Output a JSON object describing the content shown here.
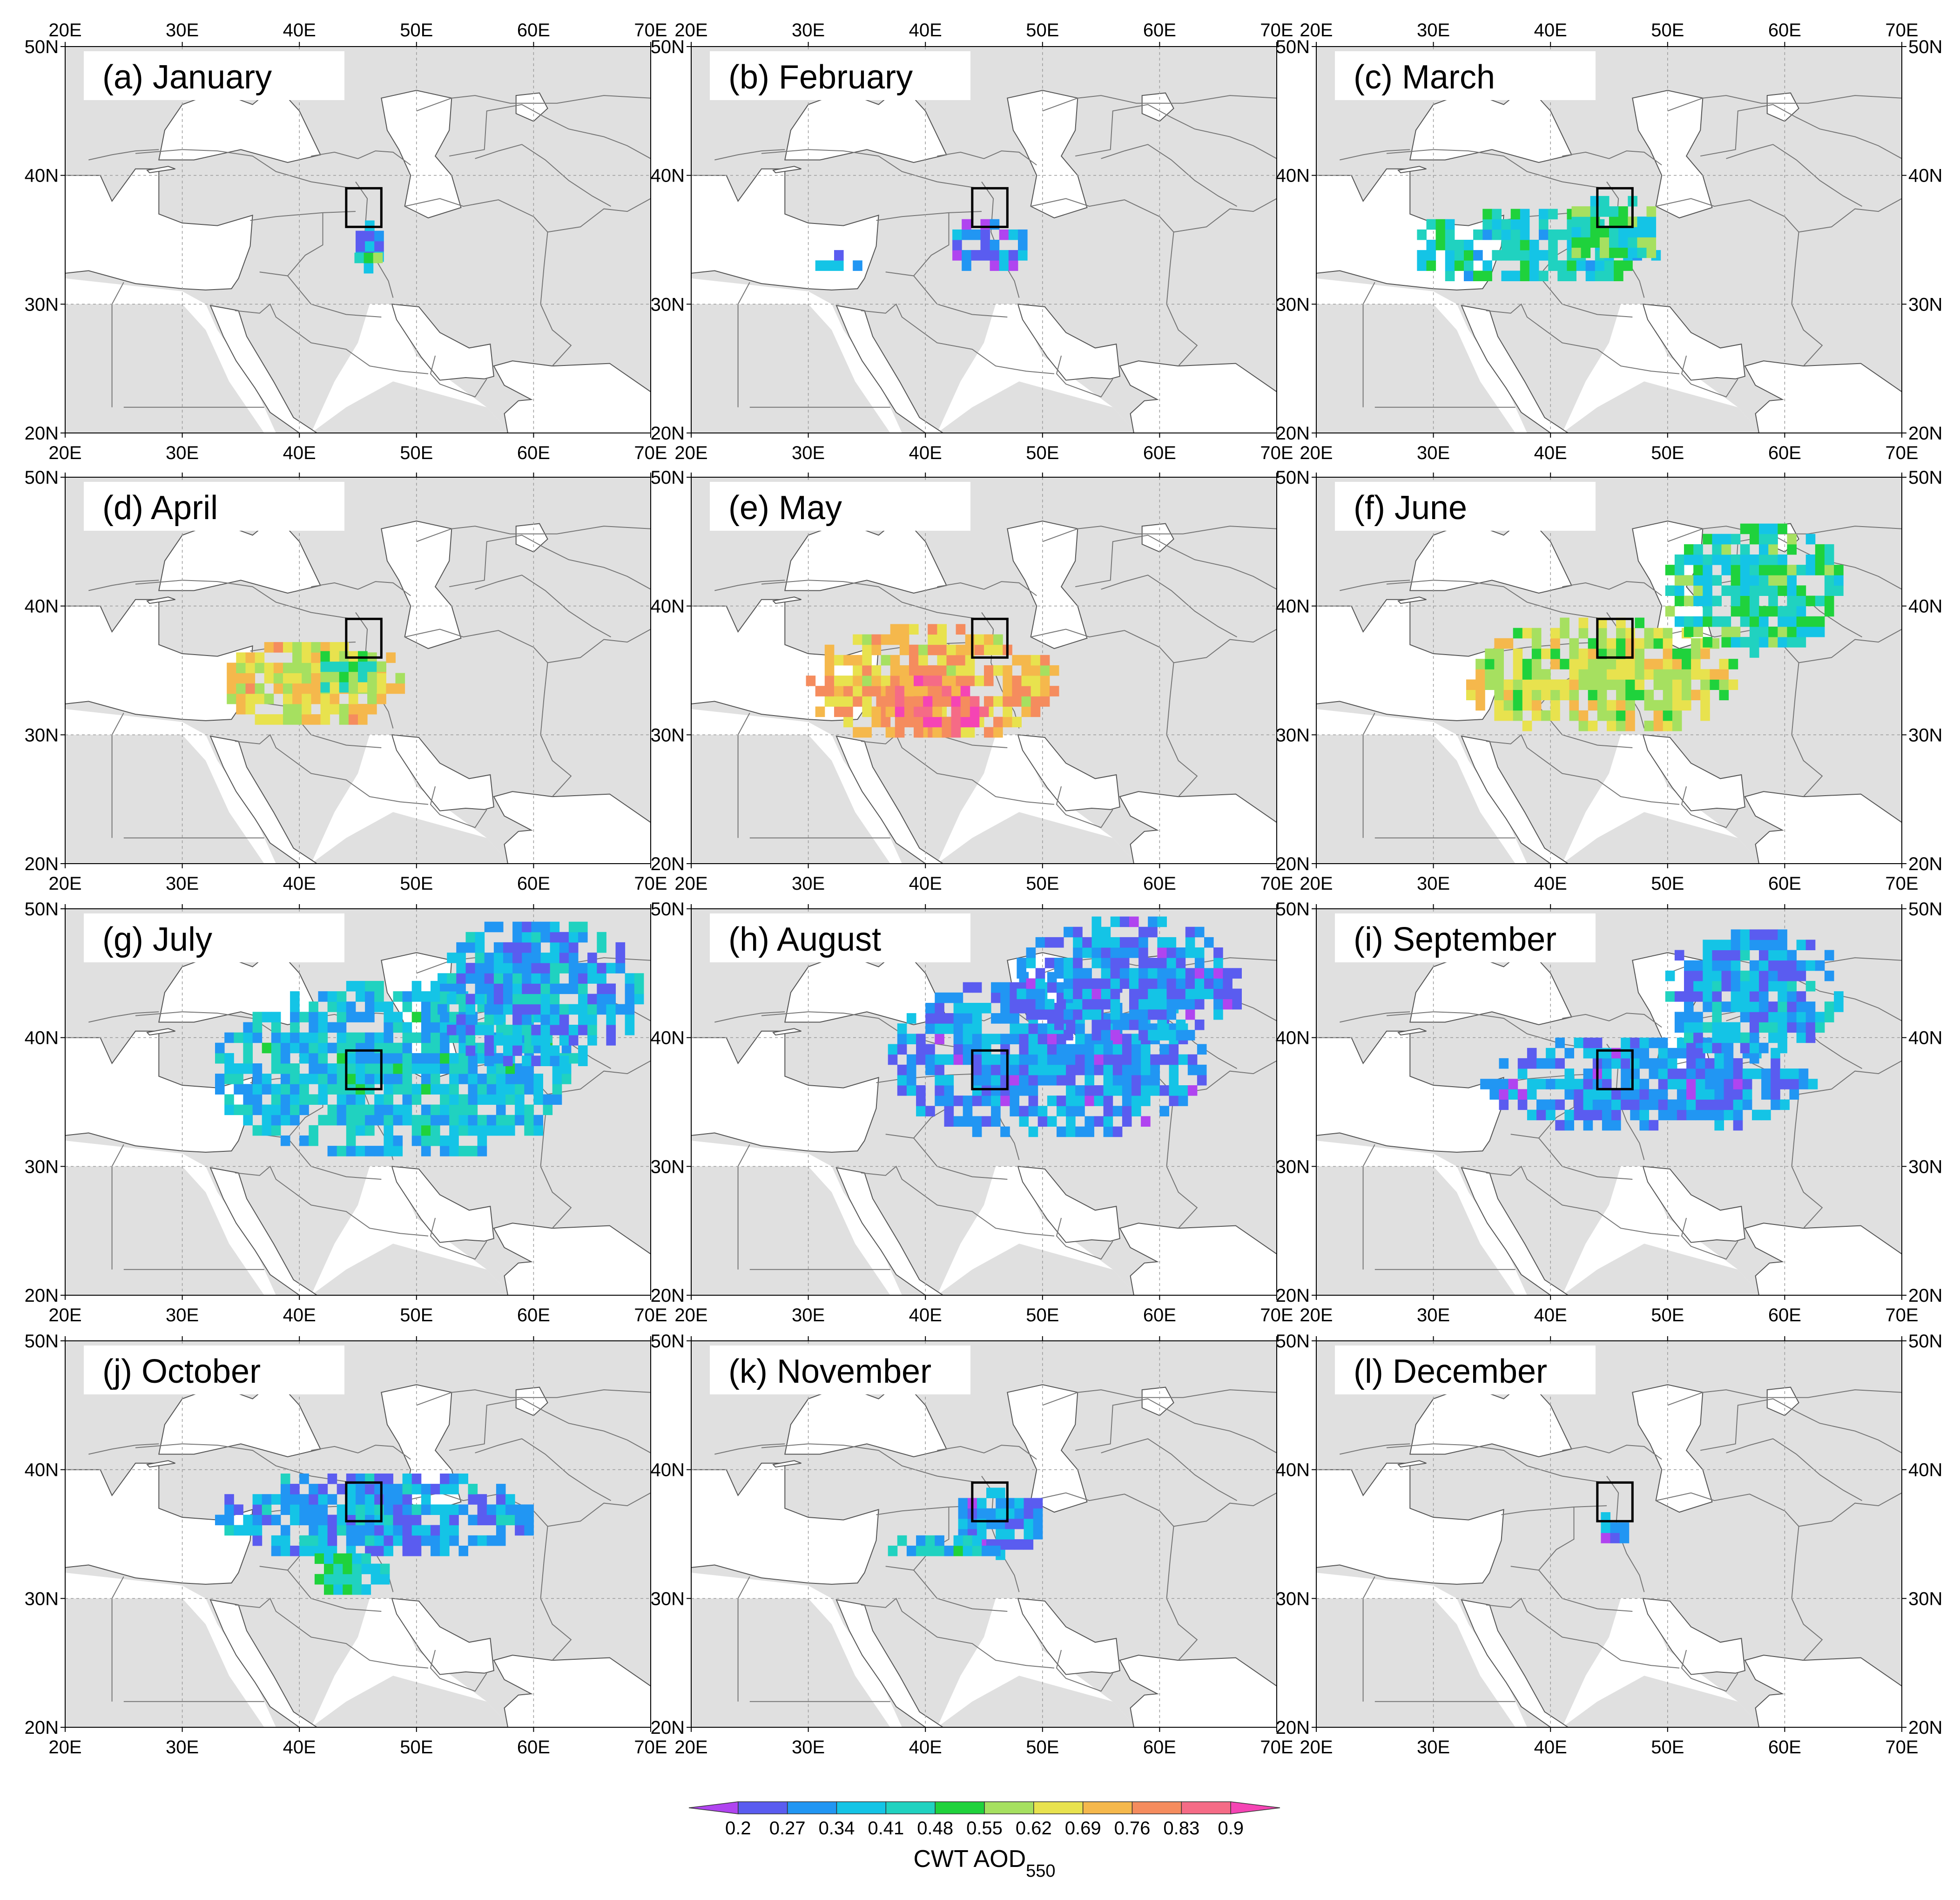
{
  "figure": {
    "panels": [
      {
        "title": "(a) January"
      },
      {
        "title": "(b) February"
      },
      {
        "title": "(c) March"
      },
      {
        "title": "(d) April"
      },
      {
        "title": "(e) May"
      },
      {
        "title": "(f) June"
      },
      {
        "title": "(g) July"
      },
      {
        "title": "(h) August"
      },
      {
        "title": "(i) September"
      },
      {
        "title": "(j) October"
      },
      {
        "title": "(k) November"
      },
      {
        "title": "(l) December"
      }
    ],
    "lon_ticks": [
      "20E",
      "30E",
      "40E",
      "50E",
      "60E",
      "70E"
    ],
    "lat_ticks": [
      "50N",
      "40N",
      "30N",
      "20N"
    ],
    "colorbar": {
      "labels": [
        "0.2",
        "0.27",
        "0.34",
        "0.41",
        "0.48",
        "0.55",
        "0.62",
        "0.69",
        "0.76",
        "0.83",
        "0.9"
      ],
      "colors": [
        "#b044f0",
        "#5a5cf0",
        "#2196f3",
        "#14c4e6",
        "#20d2c0",
        "#1fd23c",
        "#a6e060",
        "#e8e24e",
        "#f5b84c",
        "#f58c5e",
        "#f56b86",
        "#f544b4"
      ],
      "title_main": "CWT AOD",
      "title_sub": "550"
    },
    "land_color": "#e0e0e0",
    "water_color": "#ffffff",
    "study_box_color": "#000000"
  },
  "chart_data": {
    "type": "heatmap",
    "variable": "CWT AOD550",
    "lon_range": [
      20,
      70
    ],
    "lat_range": [
      20,
      50
    ],
    "color_levels": [
      0.2,
      0.27,
      0.34,
      0.41,
      0.48,
      0.55,
      0.62,
      0.69,
      0.76,
      0.83,
      0.9
    ],
    "study_region": {
      "lon": [
        44,
        47
      ],
      "lat": [
        36,
        39
      ]
    },
    "months": [
      {
        "month": "January",
        "blobs": [
          {
            "lon": 45.5,
            "lat": 34.5,
            "rx": 1.5,
            "ry": 2.0,
            "v": 0.3
          },
          {
            "lon": 45.5,
            "lat": 33.2,
            "rx": 0.8,
            "ry": 0.8,
            "v": 0.5
          }
        ]
      },
      {
        "month": "February",
        "blobs": [
          {
            "lon": 45.0,
            "lat": 34.0,
            "rx": 3.5,
            "ry": 2.2,
            "v": 0.28
          },
          {
            "lon": 32.0,
            "lat": 33.0,
            "rx": 3.0,
            "ry": 1.2,
            "v": 0.3
          }
        ]
      },
      {
        "month": "March",
        "blobs": [
          {
            "lon": 38.0,
            "lat": 34.0,
            "rx": 11.0,
            "ry": 3.0,
            "v": 0.43
          },
          {
            "lon": 45.0,
            "lat": 35.0,
            "rx": 4.0,
            "ry": 3.0,
            "v": 0.47
          }
        ]
      },
      {
        "month": "April",
        "blobs": [
          {
            "lon": 41.0,
            "lat": 33.5,
            "rx": 8.0,
            "ry": 3.5,
            "v": 0.66
          },
          {
            "lon": 44.0,
            "lat": 34.5,
            "rx": 3.0,
            "ry": 2.0,
            "v": 0.55
          }
        ]
      },
      {
        "month": "May",
        "blobs": [
          {
            "lon": 40.0,
            "lat": 33.5,
            "rx": 11.0,
            "ry": 4.5,
            "v": 0.72
          },
          {
            "lon": 40.0,
            "lat": 31.5,
            "rx": 5.0,
            "ry": 2.5,
            "v": 0.83
          }
        ]
      },
      {
        "month": "June",
        "blobs": [
          {
            "lon": 44.0,
            "lat": 34.0,
            "rx": 12.0,
            "ry": 4.5,
            "v": 0.62
          },
          {
            "lon": 57.0,
            "lat": 41.0,
            "rx": 8.0,
            "ry": 5.0,
            "v": 0.46
          }
        ]
      },
      {
        "month": "July",
        "blobs": [
          {
            "lon": 48.0,
            "lat": 37.0,
            "rx": 16.0,
            "ry": 7.0,
            "v": 0.38
          },
          {
            "lon": 60.0,
            "lat": 43.0,
            "rx": 9.0,
            "ry": 6.0,
            "v": 0.33
          }
        ]
      },
      {
        "month": "August",
        "blobs": [
          {
            "lon": 50.0,
            "lat": 38.0,
            "rx": 14.0,
            "ry": 6.5,
            "v": 0.3
          },
          {
            "lon": 57.0,
            "lat": 44.0,
            "rx": 10.0,
            "ry": 5.0,
            "v": 0.3
          }
        ]
      },
      {
        "month": "September",
        "blobs": [
          {
            "lon": 48.0,
            "lat": 36.0,
            "rx": 14.0,
            "ry": 4.0,
            "v": 0.3
          },
          {
            "lon": 57.0,
            "lat": 43.0,
            "rx": 8.0,
            "ry": 5.0,
            "v": 0.33
          }
        ]
      },
      {
        "month": "October",
        "blobs": [
          {
            "lon": 46.0,
            "lat": 36.0,
            "rx": 14.0,
            "ry": 3.5,
            "v": 0.32
          },
          {
            "lon": 44.0,
            "lat": 31.5,
            "rx": 3.5,
            "ry": 2.0,
            "v": 0.45
          }
        ]
      },
      {
        "month": "November",
        "blobs": [
          {
            "lon": 46.0,
            "lat": 35.5,
            "rx": 4.0,
            "ry": 2.5,
            "v": 0.3
          },
          {
            "lon": 41.0,
            "lat": 33.5,
            "rx": 5.0,
            "ry": 1.0,
            "v": 0.38
          }
        ]
      },
      {
        "month": "December",
        "blobs": [
          {
            "lon": 45.0,
            "lat": 35.0,
            "rx": 1.5,
            "ry": 1.5,
            "v": 0.24
          }
        ]
      }
    ]
  }
}
